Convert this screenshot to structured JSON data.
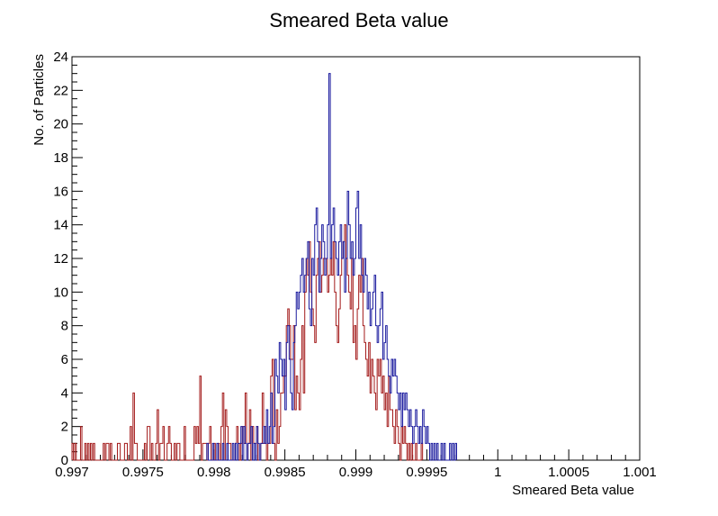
{
  "chart_data": {
    "type": "histogram",
    "title": "Smeared Beta value",
    "xlabel": "Smeared Beta value",
    "ylabel": "No. of Particles",
    "xlim": [
      0.997,
      1.001
    ],
    "ylim": [
      0,
      24
    ],
    "x_ticks": [
      "0.997",
      "0.9975",
      "0.998",
      "0.9985",
      "0.999",
      "0.9995",
      "1",
      "1.0005",
      "1.001"
    ],
    "y_ticks": [
      "0",
      "2",
      "4",
      "6",
      "8",
      "10",
      "12",
      "14",
      "16",
      "18",
      "20",
      "22",
      "24"
    ],
    "grid": false,
    "legend": "none",
    "bin_width": 1e-05,
    "series": [
      {
        "color": "#a31a1a",
        "x_start": 0.997,
        "values": [
          1,
          0,
          1,
          0,
          0,
          0,
          2,
          0,
          0,
          1,
          0,
          1,
          0,
          1,
          0,
          1,
          0,
          0,
          0,
          0,
          0,
          0,
          1,
          0,
          1,
          1,
          0,
          1,
          0,
          0,
          0,
          0,
          1,
          1,
          0,
          0,
          0,
          1,
          1,
          0,
          0,
          2,
          0,
          4,
          1,
          1,
          0,
          0,
          0,
          0,
          0,
          1,
          0,
          2,
          2,
          0,
          1,
          0,
          0,
          1,
          3,
          0,
          1,
          1,
          2,
          0,
          0,
          1,
          2,
          1,
          0,
          0,
          1,
          0,
          1,
          1,
          0,
          0,
          0,
          2,
          0,
          0,
          0,
          0,
          0,
          0,
          2,
          1,
          2,
          1,
          5,
          0,
          1,
          1,
          1,
          0,
          1,
          2,
          0,
          0,
          1,
          0,
          0,
          1,
          0,
          2,
          4,
          0,
          3,
          2,
          1,
          1,
          0,
          0,
          0,
          1,
          2,
          1,
          0,
          1,
          2,
          1,
          4,
          0,
          1,
          3,
          0,
          2,
          1,
          1,
          2,
          0,
          0,
          1,
          4,
          1,
          2,
          0,
          1,
          1,
          5,
          6,
          1,
          0,
          3,
          1,
          2,
          4,
          4,
          5,
          5,
          8,
          9,
          8,
          6,
          6,
          8,
          3,
          5,
          4,
          3,
          6,
          8,
          4,
          10,
          12,
          11,
          13,
          10,
          9,
          8,
          7,
          11,
          12,
          13,
          10,
          11,
          12,
          12,
          12,
          10,
          11,
          12,
          11,
          13,
          10,
          8,
          7,
          9,
          11,
          12,
          13,
          14,
          12,
          11,
          10,
          9,
          12,
          7,
          8,
          6,
          9,
          11,
          10,
          12,
          8,
          7,
          6,
          5,
          7,
          4,
          6,
          5,
          4,
          3,
          6,
          5,
          6,
          4,
          5,
          3,
          4,
          2,
          5,
          3,
          3,
          2,
          1,
          3,
          2,
          1,
          0,
          2,
          1,
          2,
          1,
          0,
          1,
          0,
          1,
          0,
          0,
          1,
          0,
          0,
          0,
          1
        ]
      },
      {
        "color": "#1a1a9e",
        "x_start": 0.99795,
        "values": [
          1,
          0,
          0,
          0,
          1,
          0,
          0,
          1,
          0,
          0,
          0,
          1,
          0,
          0,
          1,
          0,
          0,
          0,
          1,
          0,
          1,
          0,
          1,
          1,
          2,
          0,
          2,
          1,
          0,
          1,
          1,
          2,
          0,
          1,
          0,
          2,
          1,
          0,
          1,
          1,
          2,
          1,
          3,
          1,
          2,
          4,
          1,
          2,
          6,
          5,
          4,
          7,
          6,
          5,
          6,
          3,
          7,
          8,
          6,
          4,
          3,
          7,
          8,
          10,
          9,
          10,
          11,
          12,
          10,
          11,
          12,
          13,
          9,
          8,
          12,
          11,
          14,
          15,
          13,
          10,
          12,
          14,
          13,
          11,
          12,
          14,
          23,
          12,
          14,
          15,
          13,
          12,
          11,
          13,
          14,
          12,
          13,
          10,
          12,
          16,
          14,
          12,
          13,
          11,
          12,
          15,
          16,
          12,
          14,
          11,
          10,
          12,
          11,
          9,
          10,
          8,
          9,
          10,
          11,
          8,
          7,
          8,
          9,
          10,
          6,
          7,
          8,
          6,
          5,
          4,
          6,
          5,
          6,
          5,
          4,
          3,
          4,
          2,
          4,
          3,
          4,
          3,
          2,
          3,
          2,
          1,
          2,
          3,
          2,
          1,
          2,
          1,
          3,
          2,
          1,
          2,
          1,
          0,
          1,
          0,
          1,
          0,
          1,
          0,
          0,
          1,
          0,
          1,
          0,
          0,
          0,
          1,
          0,
          1,
          0,
          1
        ]
      }
    ]
  }
}
